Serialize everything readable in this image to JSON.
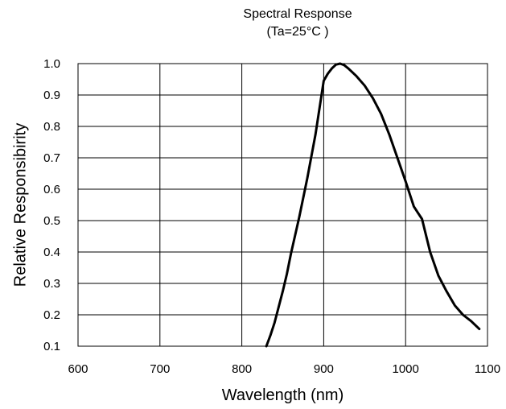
{
  "chart_data": {
    "type": "line",
    "title": "Spectral Response",
    "subtitle": "(Ta=25°C )",
    "xlabel": "Wavelength (nm)",
    "ylabel": "Relative Responsibirity",
    "xlim": [
      600,
      1100
    ],
    "ylim": [
      0.1,
      1.0
    ],
    "grid": true,
    "x_ticks": [
      "600",
      "700",
      "800",
      "900",
      "1000",
      "1100"
    ],
    "y_ticks": [
      "0.1",
      "0.2",
      "0.3",
      "0.4",
      "0.5",
      "0.6",
      "0.7",
      "0.8",
      "0.9",
      "1.0"
    ],
    "line_color": "#000000",
    "series": [
      {
        "x": [
          830,
          835,
          840,
          845,
          850,
          855,
          860,
          870,
          880,
          890,
          900,
          905,
          910,
          915,
          920,
          925,
          930,
          940,
          950,
          960,
          970,
          980,
          990,
          1000,
          1010,
          1015,
          1020,
          1030,
          1040,
          1050,
          1060,
          1070,
          1080,
          1090
        ],
        "y": [
          0.1,
          0.135,
          0.175,
          0.225,
          0.275,
          0.33,
          0.395,
          0.51,
          0.635,
          0.775,
          0.945,
          0.968,
          0.985,
          0.997,
          1.0,
          0.995,
          0.985,
          0.96,
          0.93,
          0.89,
          0.84,
          0.775,
          0.7,
          0.625,
          0.545,
          0.525,
          0.505,
          0.4,
          0.325,
          0.275,
          0.23,
          0.2,
          0.18,
          0.155
        ]
      }
    ]
  }
}
